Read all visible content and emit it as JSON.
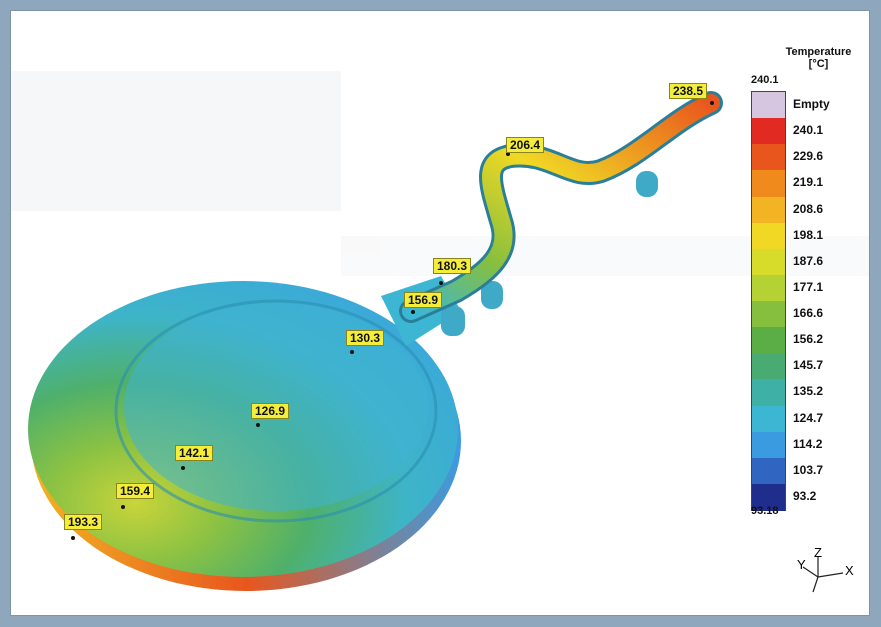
{
  "legend": {
    "title_line1": "Temperature",
    "title_line2": "[°C]",
    "max_value": "240.1",
    "min_value": "93.18",
    "empty_label": "Empty",
    "levels": [
      {
        "label": "240.1",
        "color": "#e02a22"
      },
      {
        "label": "229.6",
        "color": "#e9561d"
      },
      {
        "label": "219.1",
        "color": "#f08a1c"
      },
      {
        "label": "208.6",
        "color": "#f3b424"
      },
      {
        "label": "198.1",
        "color": "#f0d824"
      },
      {
        "label": "187.6",
        "color": "#d7dc2a"
      },
      {
        "label": "177.1",
        "color": "#b5d235"
      },
      {
        "label": "166.6",
        "color": "#86bf3e"
      },
      {
        "label": "156.2",
        "color": "#5bad45"
      },
      {
        "label": "145.7",
        "color": "#49aa72"
      },
      {
        "label": "135.2",
        "color": "#3fb0a6"
      },
      {
        "label": "124.7",
        "color": "#3cb6d2"
      },
      {
        "label": "114.2",
        "color": "#3b9be0"
      },
      {
        "label": "103.7",
        "color": "#3165c2"
      },
      {
        "label": "93.2",
        "color": "#1f2d8c"
      }
    ],
    "empty_color": "#d7c6e0"
  },
  "probes": [
    {
      "label": "238.5"
    },
    {
      "label": "206.4"
    },
    {
      "label": "180.3"
    },
    {
      "label": "156.9"
    },
    {
      "label": "130.3"
    },
    {
      "label": "126.9"
    },
    {
      "label": "142.1"
    },
    {
      "label": "159.4"
    },
    {
      "label": "193.3"
    }
  ],
  "triad": {
    "x": "X",
    "y": "Y",
    "z": "Z"
  }
}
